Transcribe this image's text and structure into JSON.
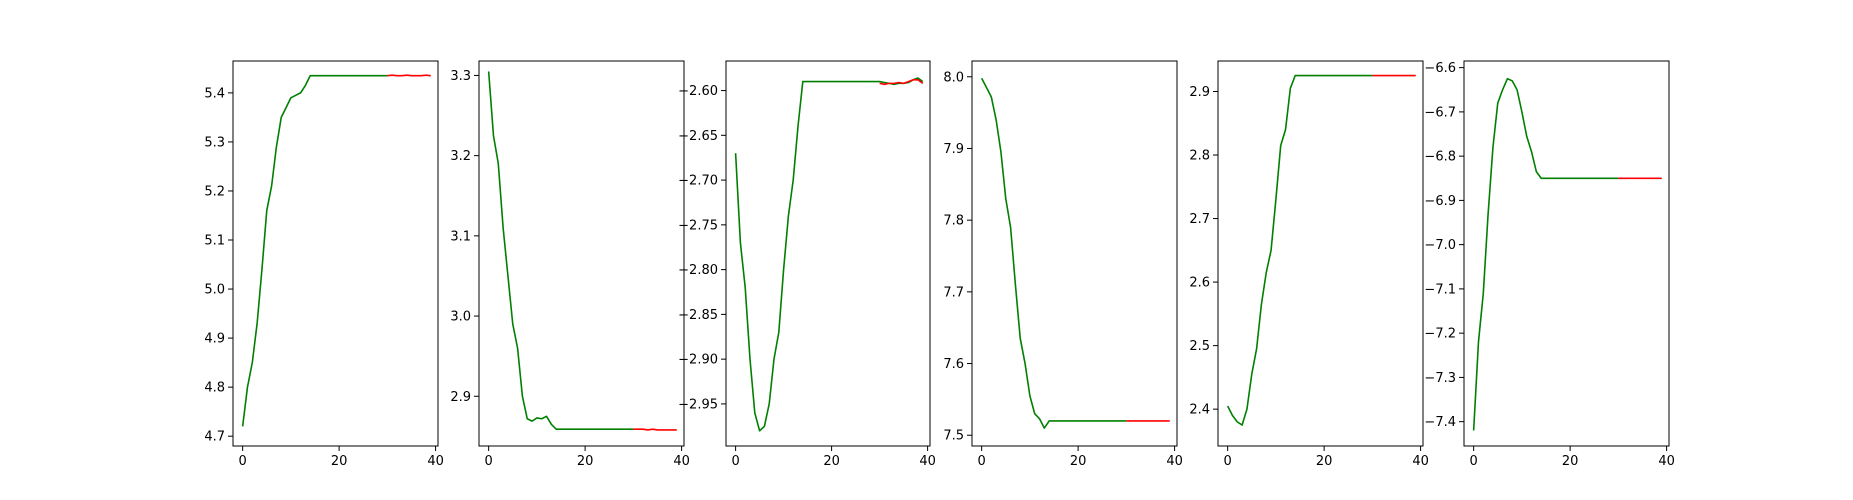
{
  "chart_data": [
    {
      "type": "line",
      "xlim": [
        -2,
        40.5
      ],
      "ylim": [
        4.68,
        5.465
      ],
      "xticks": [
        0,
        20,
        40
      ],
      "yticks": [
        4.7,
        4.8,
        4.9,
        5.0,
        5.1,
        5.2,
        5.3,
        5.4
      ],
      "series": [
        {
          "color": "#008000",
          "x": [
            0,
            1,
            2,
            3,
            4,
            5,
            6,
            7,
            8,
            9,
            10,
            11,
            12,
            13,
            14,
            15,
            16,
            17,
            18,
            19,
            20,
            21,
            22,
            23,
            24,
            25,
            26,
            27,
            28,
            29,
            30
          ],
          "y": [
            4.72,
            4.8,
            4.85,
            4.93,
            5.04,
            5.16,
            5.21,
            5.29,
            5.35,
            5.37,
            5.39,
            5.395,
            5.4,
            5.415,
            5.435,
            5.435,
            5.435,
            5.435,
            5.435,
            5.435,
            5.435,
            5.435,
            5.435,
            5.435,
            5.435,
            5.435,
            5.435,
            5.435,
            5.435,
            5.435,
            5.435
          ]
        },
        {
          "color": "#ff0000",
          "x": [
            30,
            31,
            32,
            33,
            34,
            35,
            36,
            37,
            38,
            39
          ],
          "y": [
            5.435,
            5.436,
            5.435,
            5.435,
            5.436,
            5.435,
            5.435,
            5.435,
            5.436,
            5.435
          ]
        }
      ]
    },
    {
      "type": "line",
      "xlim": [
        -2,
        40.5
      ],
      "ylim": [
        2.838,
        3.318
      ],
      "xticks": [
        0,
        20,
        40
      ],
      "yticks": [
        2.9,
        3.0,
        3.1,
        3.2,
        3.3
      ],
      "series": [
        {
          "color": "#008000",
          "x": [
            0,
            1,
            2,
            3,
            4,
            5,
            6,
            7,
            8,
            9,
            10,
            11,
            12,
            13,
            14,
            15,
            16,
            17,
            18,
            19,
            20,
            21,
            22,
            23,
            24,
            25,
            26,
            27,
            28,
            29,
            30
          ],
          "y": [
            3.305,
            3.225,
            3.19,
            3.11,
            3.05,
            2.99,
            2.96,
            2.9,
            2.872,
            2.869,
            2.873,
            2.872,
            2.875,
            2.865,
            2.859,
            2.859,
            2.859,
            2.859,
            2.859,
            2.859,
            2.859,
            2.859,
            2.859,
            2.859,
            2.859,
            2.859,
            2.859,
            2.859,
            2.859,
            2.859,
            2.859
          ]
        },
        {
          "color": "#ff0000",
          "x": [
            30,
            31,
            32,
            33,
            34,
            35,
            36,
            37,
            38,
            39
          ],
          "y": [
            2.859,
            2.859,
            2.859,
            2.858,
            2.859,
            2.858,
            2.858,
            2.858,
            2.858,
            2.858
          ]
        }
      ]
    },
    {
      "type": "line",
      "xlim": [
        -2,
        40.5
      ],
      "ylim": [
        -2.997,
        -2.567
      ],
      "xticks": [
        0,
        20,
        40
      ],
      "yticks": [
        -2.95,
        -2.9,
        -2.85,
        -2.8,
        -2.75,
        -2.7,
        -2.65,
        -2.6
      ],
      "series": [
        {
          "color": "#008000",
          "x": [
            0,
            1,
            2,
            3,
            4,
            5,
            6,
            7,
            8,
            9,
            10,
            11,
            12,
            13,
            14,
            15,
            16,
            17,
            18,
            19,
            20,
            21,
            22,
            23,
            24,
            25,
            26,
            27,
            28,
            29,
            30,
            31,
            32,
            33,
            34,
            35,
            36,
            37,
            38,
            39
          ],
          "y": [
            -2.67,
            -2.77,
            -2.82,
            -2.9,
            -2.96,
            -2.98,
            -2.975,
            -2.95,
            -2.9,
            -2.87,
            -2.8,
            -2.74,
            -2.7,
            -2.64,
            -2.59,
            -2.59,
            -2.59,
            -2.59,
            -2.59,
            -2.59,
            -2.59,
            -2.59,
            -2.59,
            -2.59,
            -2.59,
            -2.59,
            -2.59,
            -2.59,
            -2.59,
            -2.59,
            -2.59,
            -2.591,
            -2.592,
            -2.593,
            -2.592,
            -2.592,
            -2.591,
            -2.588,
            -2.586,
            -2.59
          ]
        },
        {
          "color": "#ff0000",
          "x": [
            30,
            31,
            32,
            33,
            34,
            35,
            36,
            37,
            38,
            39
          ],
          "y": [
            -2.592,
            -2.593,
            -2.592,
            -2.592,
            -2.591,
            -2.592,
            -2.59,
            -2.588,
            -2.588,
            -2.592
          ]
        }
      ]
    },
    {
      "type": "line",
      "xlim": [
        -2,
        40.5
      ],
      "ylim": [
        7.485,
        8.022
      ],
      "xticks": [
        0,
        20,
        40
      ],
      "yticks": [
        7.5,
        7.6,
        7.7,
        7.8,
        7.9,
        8.0
      ],
      "series": [
        {
          "color": "#008000",
          "x": [
            0,
            1,
            2,
            3,
            4,
            5,
            6,
            7,
            8,
            9,
            10,
            11,
            12,
            13,
            14,
            15,
            16,
            17,
            18,
            19,
            20,
            21,
            22,
            23,
            24,
            25,
            26,
            27,
            28,
            29,
            30
          ],
          "y": [
            7.998,
            7.985,
            7.972,
            7.94,
            7.895,
            7.83,
            7.79,
            7.71,
            7.635,
            7.6,
            7.555,
            7.53,
            7.523,
            7.51,
            7.52,
            7.52,
            7.52,
            7.52,
            7.52,
            7.52,
            7.52,
            7.52,
            7.52,
            7.52,
            7.52,
            7.52,
            7.52,
            7.52,
            7.52,
            7.52,
            7.52
          ]
        },
        {
          "color": "#ff0000",
          "x": [
            30,
            31,
            32,
            33,
            34,
            35,
            36,
            37,
            38,
            39
          ],
          "y": [
            7.52,
            7.52,
            7.52,
            7.52,
            7.52,
            7.52,
            7.52,
            7.52,
            7.52,
            7.52
          ]
        }
      ]
    },
    {
      "type": "line",
      "xlim": [
        -2,
        40.5
      ],
      "ylim": [
        2.342,
        2.948
      ],
      "xticks": [
        0,
        20,
        40
      ],
      "yticks": [
        2.4,
        2.5,
        2.6,
        2.7,
        2.8,
        2.9
      ],
      "series": [
        {
          "color": "#008000",
          "x": [
            0,
            1,
            2,
            3,
            4,
            5,
            6,
            7,
            8,
            9,
            10,
            11,
            12,
            13,
            14,
            15,
            16,
            17,
            18,
            19,
            20,
            21,
            22,
            23,
            24,
            25,
            26,
            27,
            28,
            29,
            30
          ],
          "y": [
            2.405,
            2.39,
            2.38,
            2.375,
            2.4,
            2.455,
            2.495,
            2.565,
            2.615,
            2.65,
            2.73,
            2.815,
            2.84,
            2.905,
            2.925,
            2.925,
            2.925,
            2.925,
            2.925,
            2.925,
            2.925,
            2.925,
            2.925,
            2.925,
            2.925,
            2.925,
            2.925,
            2.925,
            2.925,
            2.925,
            2.925
          ]
        },
        {
          "color": "#ff0000",
          "x": [
            30,
            31,
            32,
            33,
            34,
            35,
            36,
            37,
            38,
            39
          ],
          "y": [
            2.925,
            2.925,
            2.925,
            2.925,
            2.925,
            2.925,
            2.925,
            2.925,
            2.925,
            2.925
          ]
        }
      ]
    },
    {
      "type": "line",
      "xlim": [
        -2,
        40.5
      ],
      "ylim": [
        -7.455,
        -6.585
      ],
      "xticks": [
        0,
        20,
        40
      ],
      "yticks": [
        -7.4,
        -7.3,
        -7.2,
        -7.1,
        -7.0,
        -6.9,
        -6.8,
        -6.7,
        -6.6
      ],
      "series": [
        {
          "color": "#008000",
          "x": [
            0,
            1,
            2,
            3,
            4,
            5,
            6,
            7,
            8,
            9,
            10,
            11,
            12,
            13,
            14,
            15,
            16,
            17,
            18,
            19,
            20,
            21,
            22,
            23,
            24,
            25,
            26,
            27,
            28,
            29,
            30
          ],
          "y": [
            -7.42,
            -7.22,
            -7.11,
            -6.93,
            -6.78,
            -6.68,
            -6.65,
            -6.625,
            -6.63,
            -6.65,
            -6.7,
            -6.755,
            -6.79,
            -6.835,
            -6.85,
            -6.85,
            -6.85,
            -6.85,
            -6.85,
            -6.85,
            -6.85,
            -6.85,
            -6.85,
            -6.85,
            -6.85,
            -6.85,
            -6.85,
            -6.85,
            -6.85,
            -6.85,
            -6.85
          ]
        },
        {
          "color": "#ff0000",
          "x": [
            30,
            31,
            32,
            33,
            34,
            35,
            36,
            37,
            38,
            39
          ],
          "y": [
            -6.85,
            -6.85,
            -6.85,
            -6.85,
            -6.85,
            -6.85,
            -6.85,
            -6.85,
            -6.85,
            -6.85
          ]
        }
      ]
    }
  ]
}
